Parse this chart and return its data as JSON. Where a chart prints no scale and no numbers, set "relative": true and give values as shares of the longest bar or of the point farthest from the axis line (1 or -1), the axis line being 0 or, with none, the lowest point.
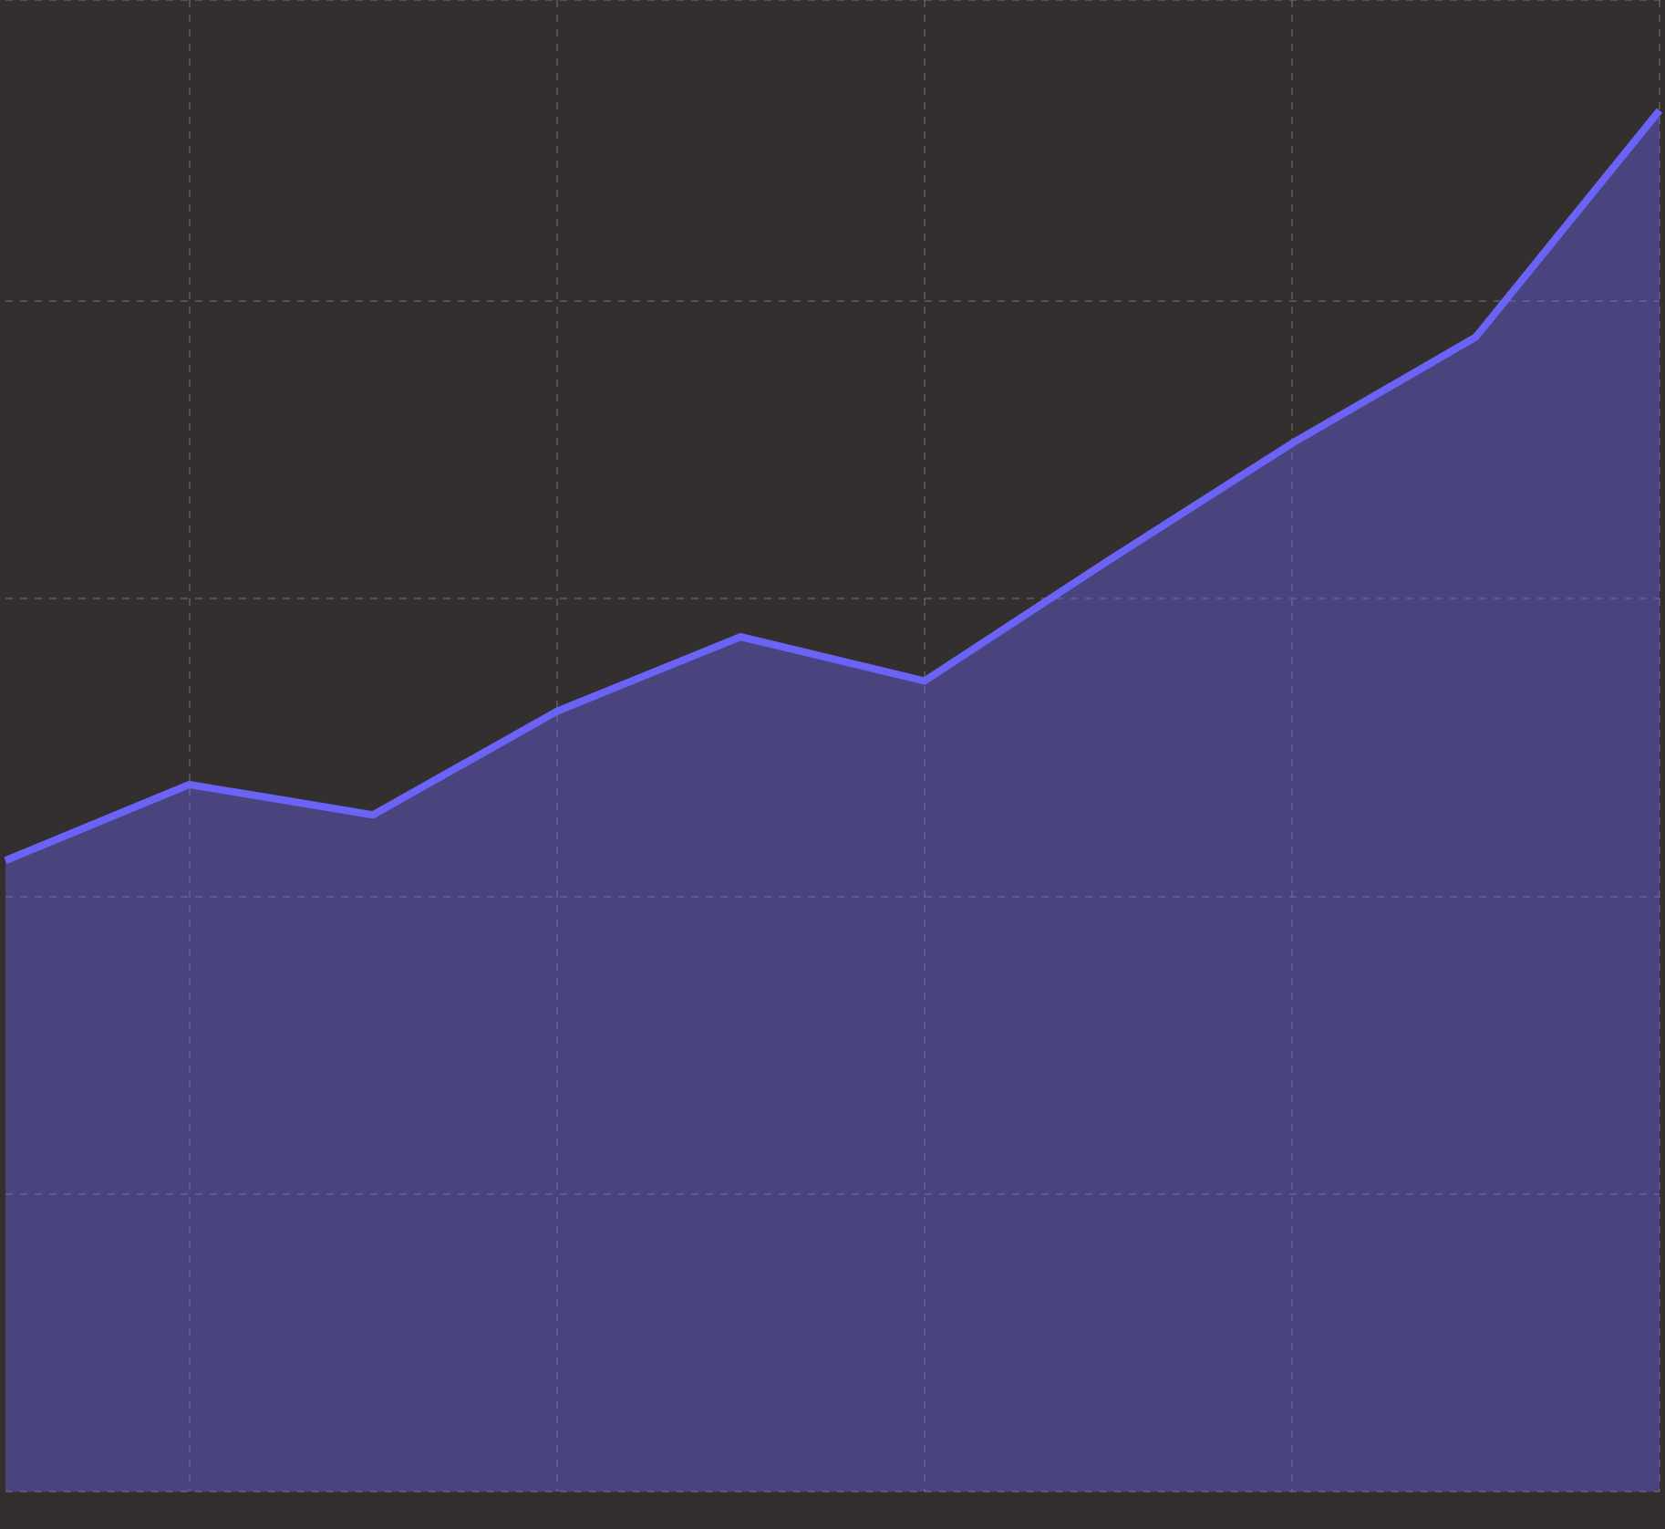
{
  "chart_data": {
    "type": "area",
    "relative": true,
    "grid": true,
    "legend": false,
    "categories": [
      null,
      null,
      null,
      null,
      null,
      null,
      null,
      null,
      null,
      null
    ],
    "series": [
      {
        "color": "#6b63f5",
        "values": [
          0.457,
          0.512,
          0.49,
          0.565,
          0.619,
          0.587,
          0.674,
          0.759,
          0.836,
          1.0
        ]
      }
    ]
  }
}
